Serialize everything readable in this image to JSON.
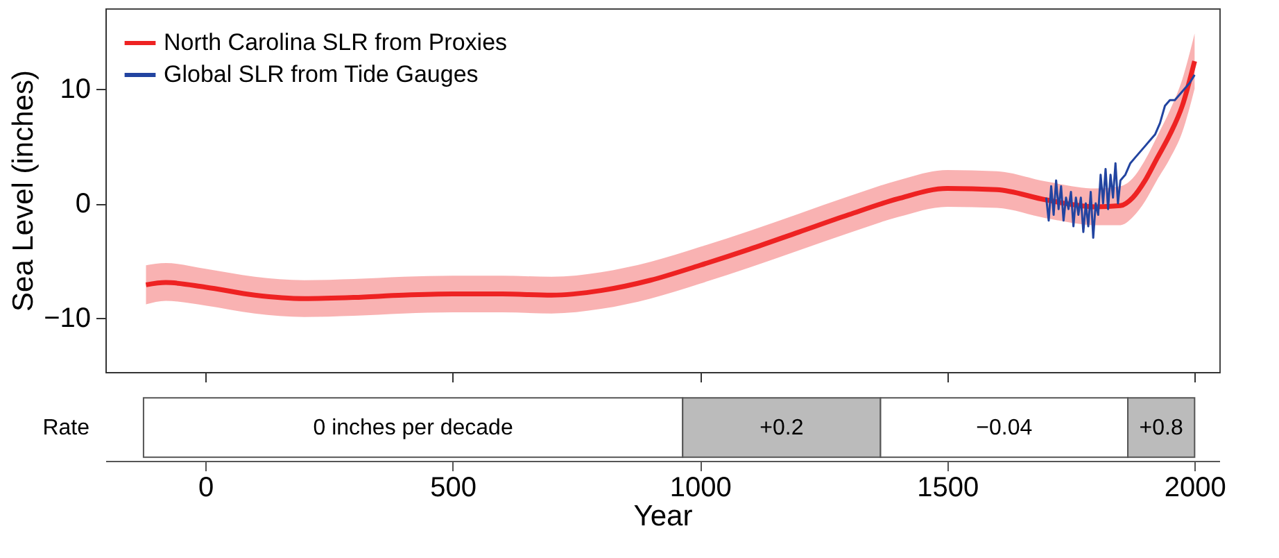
{
  "chart_data": [
    {
      "type": "line",
      "ylabel": "Sea Level (inches)",
      "xlim": [
        -202,
        2050
      ],
      "ylim": [
        -14.7,
        17
      ],
      "xticks": [
        {
          "value": 0,
          "label": null
        },
        {
          "value": 500,
          "label": null
        },
        {
          "value": 1000,
          "label": null
        },
        {
          "value": 1500,
          "label": null
        },
        {
          "value": 2000,
          "label": null
        }
      ],
      "yticks": [
        {
          "value": -10,
          "label": "−10"
        },
        0,
        10
      ],
      "tick_labels": "y",
      "legend": "top left",
      "grid": false,
      "series": [
        {
          "name": "North Carolina SLR from Proxies",
          "color": "#ee2222",
          "x": [
            -120,
            -80,
            0,
            100,
            200,
            300,
            400,
            500,
            600,
            700,
            800,
            900,
            1000,
            1100,
            1200,
            1300,
            1400,
            1500,
            1600,
            1700,
            1800,
            1850,
            1875,
            1900,
            1925,
            1950,
            1975,
            2000
          ],
          "values": [
            -7.1,
            -6.9,
            -7.3,
            -8.0,
            -8.3,
            -8.2,
            -8.0,
            -7.9,
            -7.9,
            -8.0,
            -7.6,
            -6.7,
            -5.4,
            -4.0,
            -2.5,
            -1.0,
            0.4,
            1.3,
            1.2,
            0.3,
            -0.3,
            -0.2,
            0.5,
            2.0,
            4.0,
            6.0,
            8.5,
            12.4
          ],
          "lower": [
            -8.8,
            -8.5,
            -8.9,
            -9.6,
            -9.9,
            -9.8,
            -9.6,
            -9.5,
            -9.5,
            -9.6,
            -9.2,
            -8.3,
            -7.0,
            -5.6,
            -4.1,
            -2.6,
            -1.2,
            -0.3,
            -0.4,
            -1.3,
            -1.9,
            -1.9,
            -1.2,
            0.2,
            2.1,
            3.9,
            6.2,
            10.0
          ],
          "upper": [
            -5.4,
            -5.2,
            -5.7,
            -6.4,
            -6.7,
            -6.6,
            -6.4,
            -6.3,
            -6.3,
            -6.4,
            -6.0,
            -5.1,
            -3.8,
            -2.4,
            -0.9,
            0.6,
            2.0,
            2.9,
            2.8,
            1.9,
            1.3,
            1.5,
            2.2,
            3.8,
            5.9,
            8.1,
            10.8,
            14.8
          ]
        },
        {
          "name": "Global SLR from Tide Gauges",
          "color": "#2244a0",
          "x": [
            1700,
            1705,
            1710,
            1715,
            1720,
            1725,
            1730,
            1735,
            1740,
            1745,
            1750,
            1755,
            1760,
            1765,
            1770,
            1775,
            1780,
            1785,
            1790,
            1795,
            1800,
            1805,
            1810,
            1815,
            1820,
            1825,
            1830,
            1835,
            1840,
            1845,
            1850,
            1860,
            1870,
            1880,
            1890,
            1900,
            1910,
            1920,
            1930,
            1940,
            1950,
            1960,
            1970,
            1980,
            1990,
            2000
          ],
          "values": [
            0.5,
            -1.5,
            1.5,
            -1.0,
            2.0,
            -0.5,
            1.5,
            -1.5,
            0.5,
            -0.5,
            1.0,
            -2.0,
            0.5,
            -1.0,
            0.5,
            -2.5,
            0.0,
            -2.0,
            1.0,
            -3.0,
            0.0,
            -1.0,
            2.5,
            0.0,
            3.0,
            -0.5,
            2.5,
            0.5,
            3.5,
            0.0,
            2.0,
            2.5,
            3.5,
            4.0,
            4.5,
            5.0,
            5.5,
            6.0,
            7.0,
            8.5,
            9.0,
            9.0,
            9.5,
            10.0,
            10.5,
            11.2
          ]
        }
      ]
    },
    {
      "type": "bar",
      "orientation": "horizontal",
      "categories": [
        "Rate"
      ],
      "xlabel": "Year",
      "xlim": [
        -202,
        2050
      ],
      "xticks": [
        0,
        500,
        1000,
        1500,
        2000
      ],
      "series": [
        {
          "color": "#ffffff",
          "base": [
            -125
          ],
          "values": [
            1090
          ]
        },
        {
          "color": "#bbbbbb",
          "base": [
            965
          ],
          "values": [
            400
          ]
        },
        {
          "color": "#ffffff",
          "base": [
            1365
          ],
          "values": [
            500
          ]
        },
        {
          "color": "#bbbbbb",
          "base": [
            1865
          ],
          "values": [
            135
          ]
        }
      ],
      "annotations": [
        "0 inches per decade",
        "+0.2",
        "−0.04",
        "+0.8"
      ]
    }
  ]
}
